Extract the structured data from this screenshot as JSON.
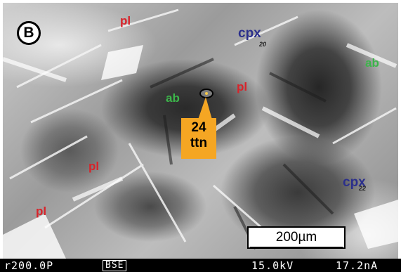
{
  "panel": {
    "letter": "B"
  },
  "labels": {
    "pl": "pl",
    "ab": "ab",
    "cpx": "cpx",
    "cpx_sub_1": "20",
    "cpx_sub_2": "22"
  },
  "callout": {
    "number": "24",
    "mineral": "ttn",
    "color": "#f5a623"
  },
  "scale_bar": {
    "label": "200µm"
  },
  "footer": {
    "magnification": "r200.0P",
    "mode": "BSE",
    "voltage": "15.0kV",
    "current": "17.2nA"
  },
  "colors": {
    "pl": "#d8232a",
    "ab": "#3cb54a",
    "cpx": "#2b2f8c"
  }
}
